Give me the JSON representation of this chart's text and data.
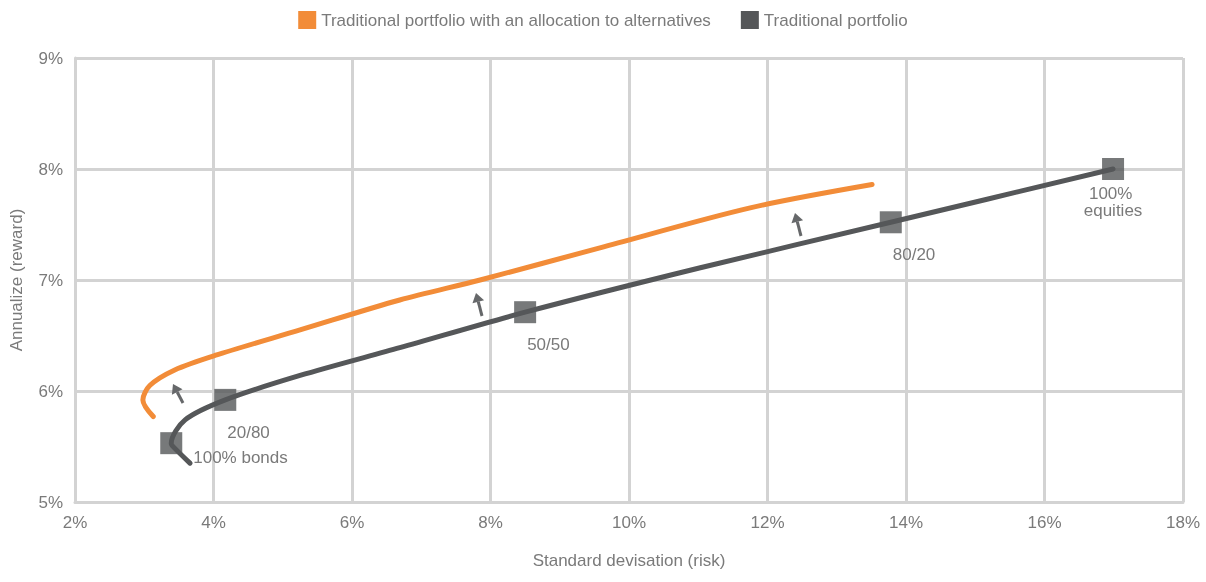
{
  "chart_data": {
    "type": "line",
    "xlabel": "Standard devisation (risk)",
    "ylabel": "Annualize (reward)",
    "xlim": [
      2,
      18
    ],
    "xticks": [
      {
        "value": 2,
        "label": "2%"
      },
      {
        "value": 4,
        "label": "4%"
      },
      {
        "value": 6,
        "label": "6%"
      },
      {
        "value": 8,
        "label": "8%"
      },
      {
        "value": 10,
        "label": "10%"
      },
      {
        "value": 12,
        "label": "12%"
      },
      {
        "value": 14,
        "label": "14%"
      },
      {
        "value": 16,
        "label": "16%"
      },
      {
        "value": 18,
        "label": "18%"
      }
    ],
    "ylim": [
      5,
      9
    ],
    "yticks": [
      {
        "value": 5,
        "label": "5%"
      },
      {
        "value": 6,
        "label": "6%"
      },
      {
        "value": 7,
        "label": "7%"
      },
      {
        "value": 8,
        "label": "8%"
      },
      {
        "value": 9,
        "label": "9%"
      }
    ],
    "annotations": [
      {
        "text": "100% bonds",
        "x": 3.39,
        "y": 5.53
      },
      {
        "text": "20/80",
        "x": 4.17,
        "y": 5.92
      },
      {
        "text": "50/50",
        "x": 8.5,
        "y": 6.71
      },
      {
        "text": "80/20",
        "x": 13.78,
        "y": 7.52
      },
      {
        "text": "100% equities",
        "x": 16.99,
        "y": 8.0
      }
    ],
    "grid": true,
    "legend": "top",
    "marker": "none",
    "line_style": "solid",
    "series": [
      {
        "name": "Traditional portfolio with an allocation to alternatives",
        "color": "#f28c38",
        "x": [
          3.13,
          2.98,
          3.08,
          3.44,
          4.02,
          5.25,
          6.69,
          7.85,
          9.58,
          11.75,
          13.51
        ],
        "values": [
          5.77,
          5.92,
          6.05,
          6.19,
          6.32,
          6.55,
          6.82,
          7.0,
          7.29,
          7.65,
          7.86
        ]
      },
      {
        "name": "Traditional portfolio",
        "color": "#555759",
        "x": [
          3.66,
          3.4,
          3.39,
          3.59,
          4.17,
          5.25,
          6.69,
          8.5,
          11.03,
          13.78,
          16.99
        ],
        "values": [
          5.35,
          5.51,
          5.53,
          5.74,
          5.92,
          6.14,
          6.39,
          6.71,
          7.11,
          7.52,
          8.0
        ]
      },
      {
        "type": "scatter",
        "marker": "square",
        "color": "#555759",
        "x": [
          3.39,
          4.17,
          8.5,
          13.78,
          16.99
        ],
        "values": [
          5.53,
          5.92,
          6.71,
          7.52,
          8.0
        ]
      }
    ]
  }
}
